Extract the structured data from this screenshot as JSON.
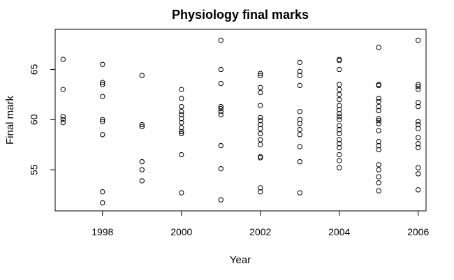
{
  "chart_data": {
    "type": "scatter",
    "title": "Physiology final marks",
    "xlabel": "Year",
    "ylabel": "Final mark",
    "xlim": [
      1996.8,
      2006.2
    ],
    "ylim": [
      50.9,
      69.0
    ],
    "x_ticks": [
      1998,
      2000,
      2002,
      2004,
      2006
    ],
    "y_ticks": [
      55,
      60,
      65
    ],
    "x_tick_labels": [
      "1998",
      "2000",
      "2002",
      "2004",
      "2006"
    ],
    "y_tick_labels": [
      "55",
      "60",
      "65"
    ],
    "grid": false,
    "series": [
      {
        "points": [
          [
            1997,
            66.0
          ],
          [
            1997,
            63.0
          ],
          [
            1997,
            60.3
          ],
          [
            1997,
            60.0
          ],
          [
            1997,
            59.7
          ],
          [
            1998,
            65.5
          ],
          [
            1998,
            63.7
          ],
          [
            1998,
            63.5
          ],
          [
            1998,
            62.3
          ],
          [
            1998,
            60.0
          ],
          [
            1998,
            59.8
          ],
          [
            1998,
            58.5
          ],
          [
            1998,
            52.8
          ],
          [
            1998,
            51.7
          ],
          [
            1999,
            64.4
          ],
          [
            1999,
            59.5
          ],
          [
            1999,
            59.3
          ],
          [
            1999,
            55.8
          ],
          [
            1999,
            55.0
          ],
          [
            1999,
            53.9
          ],
          [
            2000,
            63.0
          ],
          [
            2000,
            62.1
          ],
          [
            2000,
            61.3
          ],
          [
            2000,
            60.8
          ],
          [
            2000,
            60.5
          ],
          [
            2000,
            60.1
          ],
          [
            2000,
            59.7
          ],
          [
            2000,
            59.2
          ],
          [
            2000,
            58.8
          ],
          [
            2000,
            58.6
          ],
          [
            2000,
            56.5
          ],
          [
            2000,
            52.7
          ],
          [
            2001,
            67.9
          ],
          [
            2001,
            65.0
          ],
          [
            2001,
            63.6
          ],
          [
            2001,
            61.3
          ],
          [
            2001,
            61.1
          ],
          [
            2001,
            60.8
          ],
          [
            2001,
            60.5
          ],
          [
            2001,
            57.4
          ],
          [
            2001,
            55.1
          ],
          [
            2001,
            52.0
          ],
          [
            2002,
            64.6
          ],
          [
            2002,
            64.4
          ],
          [
            2002,
            63.2
          ],
          [
            2002,
            62.7
          ],
          [
            2002,
            61.4
          ],
          [
            2002,
            60.2
          ],
          [
            2002,
            59.9
          ],
          [
            2002,
            59.5
          ],
          [
            2002,
            59.1
          ],
          [
            2002,
            58.6
          ],
          [
            2002,
            58.0
          ],
          [
            2002,
            57.5
          ],
          [
            2002,
            56.3
          ],
          [
            2002,
            56.2
          ],
          [
            2002,
            53.2
          ],
          [
            2002,
            52.8
          ],
          [
            2003,
            65.7
          ],
          [
            2003,
            64.8
          ],
          [
            2003,
            64.4
          ],
          [
            2003,
            63.4
          ],
          [
            2003,
            60.8
          ],
          [
            2003,
            60.0
          ],
          [
            2003,
            59.6
          ],
          [
            2003,
            59.0
          ],
          [
            2003,
            58.5
          ],
          [
            2003,
            57.3
          ],
          [
            2003,
            55.8
          ],
          [
            2003,
            52.7
          ],
          [
            2004,
            66.0
          ],
          [
            2004,
            65.9
          ],
          [
            2004,
            65.0
          ],
          [
            2004,
            63.5
          ],
          [
            2004,
            63.0
          ],
          [
            2004,
            62.5
          ],
          [
            2004,
            62.0
          ],
          [
            2004,
            61.4
          ],
          [
            2004,
            61.0
          ],
          [
            2004,
            60.6
          ],
          [
            2004,
            60.3
          ],
          [
            2004,
            60.0
          ],
          [
            2004,
            59.4
          ],
          [
            2004,
            59.0
          ],
          [
            2004,
            58.6
          ],
          [
            2004,
            58.0
          ],
          [
            2004,
            57.6
          ],
          [
            2004,
            57.2
          ],
          [
            2004,
            56.5
          ],
          [
            2004,
            55.9
          ],
          [
            2004,
            55.2
          ],
          [
            2005,
            67.2
          ],
          [
            2005,
            63.5
          ],
          [
            2005,
            63.4
          ],
          [
            2005,
            62.1
          ],
          [
            2005,
            61.8
          ],
          [
            2005,
            61.3
          ],
          [
            2005,
            60.9
          ],
          [
            2005,
            60.1
          ],
          [
            2005,
            59.9
          ],
          [
            2005,
            59.6
          ],
          [
            2005,
            58.9
          ],
          [
            2005,
            57.8
          ],
          [
            2005,
            57.4
          ],
          [
            2005,
            57.0
          ],
          [
            2005,
            55.5
          ],
          [
            2005,
            55.0
          ],
          [
            2005,
            54.3
          ],
          [
            2005,
            53.7
          ],
          [
            2005,
            52.9
          ],
          [
            2006,
            67.9
          ],
          [
            2006,
            63.5
          ],
          [
            2006,
            63.3
          ],
          [
            2006,
            63.0
          ],
          [
            2006,
            61.7
          ],
          [
            2006,
            61.3
          ],
          [
            2006,
            59.8
          ],
          [
            2006,
            59.5
          ],
          [
            2006,
            59.1
          ],
          [
            2006,
            58.2
          ],
          [
            2006,
            57.6
          ],
          [
            2006,
            57.2
          ],
          [
            2006,
            55.2
          ],
          [
            2006,
            54.6
          ],
          [
            2006,
            53.0
          ]
        ]
      }
    ]
  }
}
